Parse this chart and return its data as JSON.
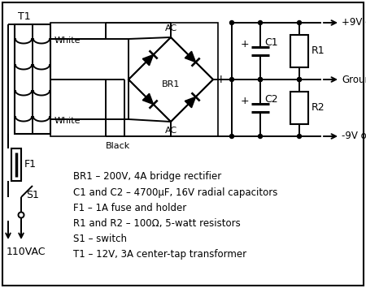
{
  "bg_color": "#ffffff",
  "line_color": "#000000",
  "parts_list": [
    "BR1 – 200V, 4A bridge rectifier",
    "C1 and C2 – 4700μF, 16V radial capacitors",
    "F1 – 1A fuse and holder",
    "R1 and R2 – 100Ω, 5-watt resistors",
    "S1 – switch",
    "T1 – 12V, 3A center-tap transformer"
  ],
  "lw": 1.4
}
